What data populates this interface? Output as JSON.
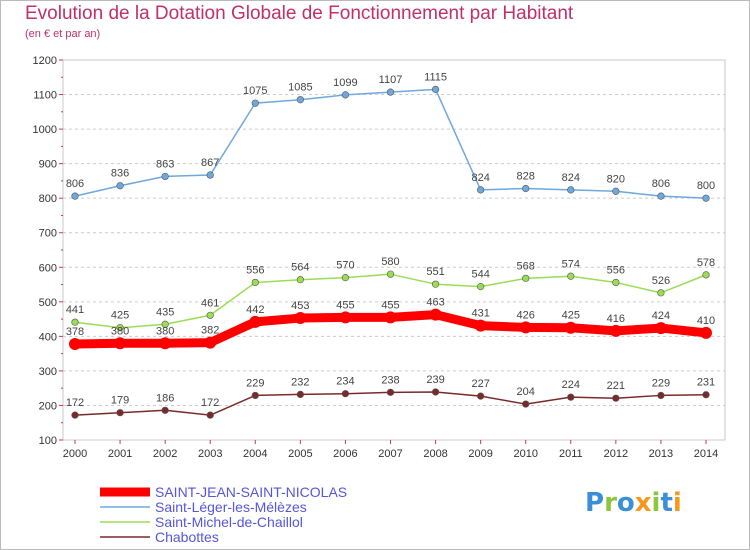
{
  "header": {
    "title": "Evolution de la Dotation Globale de Fonctionnement par Habitant",
    "subtitle": "(en € et par an)"
  },
  "logo": {
    "text": "Proxiti",
    "colors": [
      "#3a8fd6",
      "#f39a1e",
      "#8cc63f"
    ]
  },
  "chart_data": {
    "type": "line",
    "title": "Evolution de la Dotation Globale de Fonctionnement par Habitant",
    "subtitle": "(en € et par an)",
    "xlabel": "",
    "ylabel": "",
    "x": [
      "2000",
      "2001",
      "2002",
      "2003",
      "2004",
      "2005",
      "2006",
      "2007",
      "2008",
      "2009",
      "2010",
      "2011",
      "2012",
      "2013",
      "2014"
    ],
    "ylim": [
      100,
      1200
    ],
    "yticks": [
      100,
      200,
      300,
      400,
      500,
      600,
      700,
      800,
      900,
      1000,
      1100,
      1200
    ],
    "grid": "horizontal dashed",
    "legend_position": "bottom-left",
    "series": [
      {
        "name": "SAINT-JEAN-SAINT-NICOLAS",
        "color": "#ff0000",
        "highlight": true,
        "values": [
          378,
          380,
          380,
          382,
          442,
          453,
          455,
          455,
          463,
          431,
          426,
          425,
          416,
          424,
          410
        ]
      },
      {
        "name": "Saint-Léger-les-Mélèzes",
        "color": "#6fa8dc",
        "values": [
          806,
          836,
          863,
          867,
          1075,
          1085,
          1099,
          1107,
          1115,
          824,
          828,
          824,
          820,
          806,
          800
        ]
      },
      {
        "name": "Saint-Michel-de-Chaillol",
        "color": "#99dd55",
        "values": [
          441,
          425,
          435,
          461,
          556,
          564,
          570,
          580,
          551,
          544,
          568,
          574,
          556,
          526,
          578
        ]
      },
      {
        "name": "Chabottes",
        "color": "#7a2a2a",
        "values": [
          172,
          179,
          186,
          172,
          229,
          232,
          234,
          238,
          239,
          227,
          204,
          224,
          221,
          229,
          231
        ]
      }
    ]
  }
}
